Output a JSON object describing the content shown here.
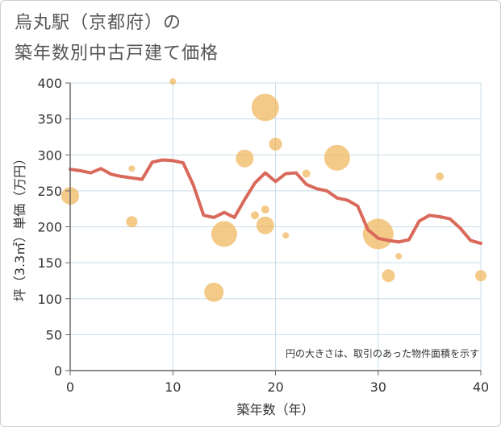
{
  "title_line1": "烏丸駅（京都府）の",
  "title_line2": "築年数別中古戸建て価格",
  "chart_data": {
    "type": "scatter",
    "xlabel": "築年数（年）",
    "ylabel": "坪（3.3㎡）単価（万円）",
    "xlim": [
      0,
      40
    ],
    "ylim": [
      0,
      400
    ],
    "xticks": [
      0,
      10,
      20,
      30,
      40
    ],
    "yticks": [
      0,
      50,
      100,
      150,
      200,
      250,
      300,
      350,
      400
    ],
    "grid": true,
    "note": "円の大きさは、取引のあった物件面積を示す",
    "colors": {
      "bubble": "#f0b860",
      "line": "#d9695a",
      "grid": "#c9dde8",
      "axis": "#666666"
    },
    "bubbles": [
      {
        "x": 0,
        "y": 243,
        "size": 11
      },
      {
        "x": 6,
        "y": 281,
        "size": 4
      },
      {
        "x": 6,
        "y": 207,
        "size": 7
      },
      {
        "x": 10,
        "y": 402,
        "size": 4
      },
      {
        "x": 14,
        "y": 109,
        "size": 12
      },
      {
        "x": 15,
        "y": 190,
        "size": 16
      },
      {
        "x": 17,
        "y": 295,
        "size": 11
      },
      {
        "x": 18,
        "y": 216,
        "size": 5
      },
      {
        "x": 19,
        "y": 366,
        "size": 17
      },
      {
        "x": 19,
        "y": 224,
        "size": 5
      },
      {
        "x": 19,
        "y": 202,
        "size": 11
      },
      {
        "x": 20,
        "y": 315,
        "size": 8
      },
      {
        "x": 21,
        "y": 188,
        "size": 4
      },
      {
        "x": 23,
        "y": 274,
        "size": 5
      },
      {
        "x": 26,
        "y": 296,
        "size": 16
      },
      {
        "x": 30,
        "y": 190,
        "size": 19
      },
      {
        "x": 31,
        "y": 132,
        "size": 8
      },
      {
        "x": 32,
        "y": 159,
        "size": 4
      },
      {
        "x": 36,
        "y": 270,
        "size": 5
      },
      {
        "x": 40,
        "y": 132,
        "size": 7
      }
    ],
    "line": {
      "x": [
        0,
        1,
        2,
        3,
        4,
        5,
        6,
        7,
        8,
        9,
        10,
        11,
        12,
        13,
        14,
        15,
        16,
        17,
        18,
        19,
        20,
        21,
        22,
        23,
        24,
        25,
        26,
        27,
        28,
        29,
        30,
        31,
        32,
        33,
        34,
        35,
        36,
        37,
        38,
        39,
        40
      ],
      "y": [
        280,
        278,
        275,
        281,
        273,
        270,
        268,
        266,
        290,
        293,
        292,
        289,
        258,
        216,
        213,
        220,
        213,
        238,
        261,
        275,
        263,
        274,
        275,
        259,
        253,
        250,
        240,
        237,
        229,
        196,
        184,
        181,
        179,
        182,
        208,
        216,
        214,
        211,
        198,
        181,
        177
      ]
    }
  }
}
